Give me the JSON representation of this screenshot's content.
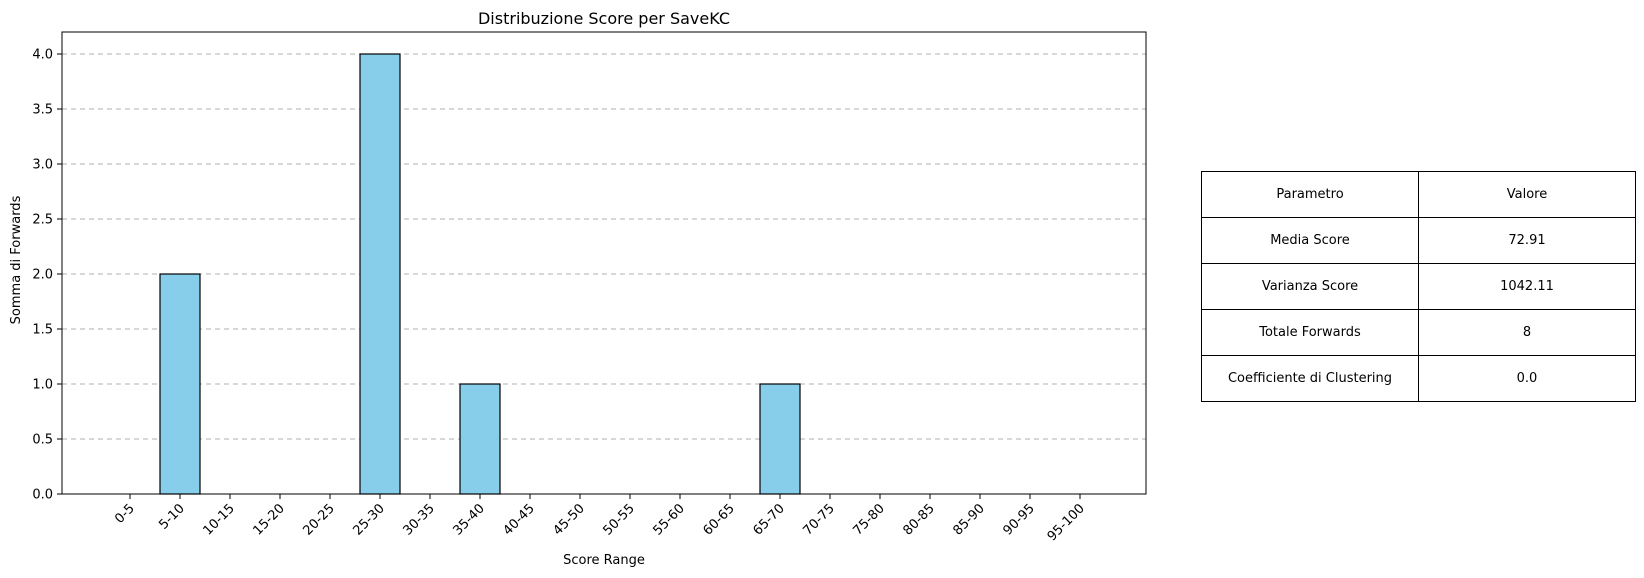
{
  "chart_data": {
    "type": "bar",
    "title": "Distribuzione Score per SaveKC",
    "xlabel": "Score Range",
    "ylabel": "Somma di Forwards",
    "categories": [
      "0-5",
      "5-10",
      "10-15",
      "15-20",
      "20-25",
      "25-30",
      "30-35",
      "35-40",
      "40-45",
      "45-50",
      "50-55",
      "55-60",
      "60-65",
      "65-70",
      "70-75",
      "75-80",
      "80-85",
      "85-90",
      "90-95",
      "95-100"
    ],
    "values": [
      0,
      2,
      0,
      0,
      0,
      4,
      0,
      1,
      0,
      0,
      0,
      0,
      0,
      1,
      0,
      0,
      0,
      0,
      0,
      0
    ],
    "ylim": [
      0,
      4.2
    ],
    "yticks": [
      0.0,
      0.5,
      1.0,
      1.5,
      2.0,
      2.5,
      3.0,
      3.5,
      4.0
    ],
    "ytick_labels": [
      "0.0",
      "0.5",
      "1.0",
      "1.5",
      "2.0",
      "2.5",
      "3.0",
      "3.5",
      "4.0"
    ],
    "grid": "y-dashed",
    "bar_color": "#87CEEB",
    "bar_edge_color": "#000000"
  },
  "stats_table": {
    "headers": [
      "Parametro",
      "Valore"
    ],
    "rows": [
      [
        "Media Score",
        "72.91"
      ],
      [
        "Varianza Score",
        "1042.11"
      ],
      [
        "Totale Forwards",
        "8"
      ],
      [
        "Coefficiente di Clustering",
        "0.0"
      ]
    ]
  }
}
